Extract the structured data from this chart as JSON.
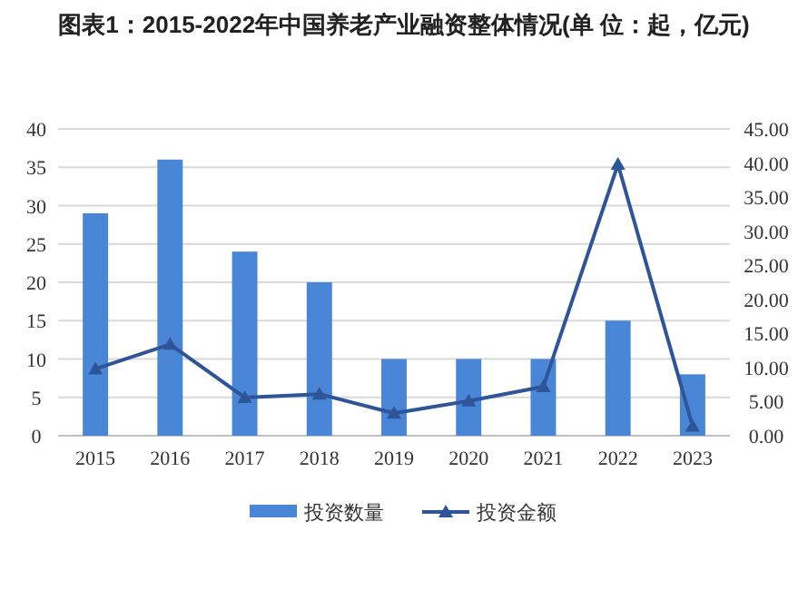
{
  "chart_data": {
    "type": "bar",
    "title": "图表1：2015-2022年中国养老产业融资整体情况(单 位：起，亿元)",
    "categories": [
      "2015",
      "2016",
      "2017",
      "2018",
      "2019",
      "2020",
      "2021",
      "2022",
      "2023"
    ],
    "series": [
      {
        "name": "投资数量",
        "color": "#4a86d8",
        "values": [
          29,
          36,
          24,
          20,
          10,
          10,
          10,
          15,
          8
        ]
      },
      {
        "name": "投资金额",
        "type": "line",
        "axis": "y2",
        "color": "#2e5597",
        "marker": "triangle",
        "values": [
          9.8,
          13.4,
          5.6,
          6.1,
          3.3,
          5.1,
          7.2,
          39.8,
          1.4
        ]
      }
    ],
    "ylim": [
      0,
      40
    ],
    "yticks": [
      0,
      5,
      10,
      15,
      20,
      25,
      30,
      35,
      40
    ],
    "y2lim": [
      0,
      45
    ],
    "y2ticks": [
      {
        "value": 0,
        "label": "0.00"
      },
      {
        "value": 5,
        "label": "5.00"
      },
      {
        "value": 10,
        "label": "10.00"
      },
      {
        "value": 15,
        "label": "15.00"
      },
      {
        "value": 20,
        "label": "20.00"
      },
      {
        "value": 25,
        "label": "25.00"
      },
      {
        "value": 30,
        "label": "30.00"
      },
      {
        "value": 35,
        "label": "35.00"
      },
      {
        "value": 40,
        "label": "40.00"
      },
      {
        "value": 45,
        "label": "45.00"
      }
    ],
    "grid": "y",
    "legend": "bottom"
  }
}
